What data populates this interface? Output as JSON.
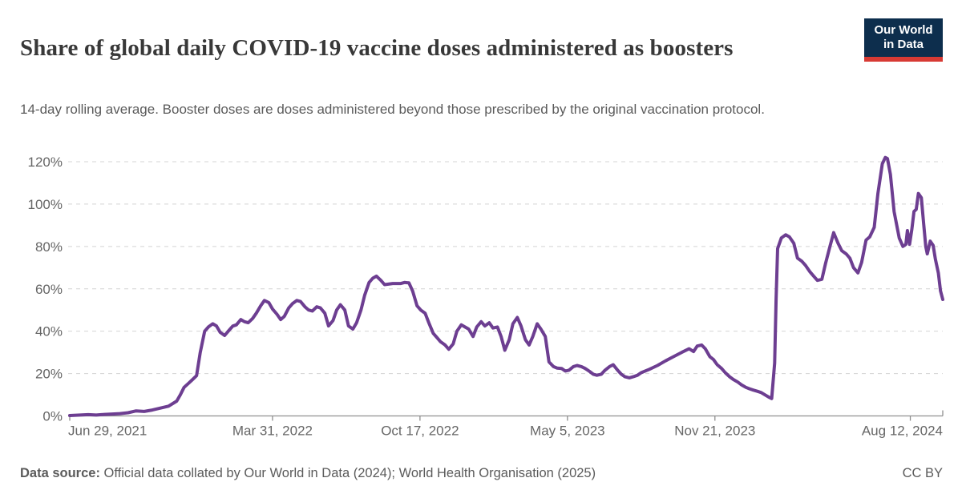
{
  "header": {
    "title": "Share of global daily COVID-19 vaccine doses administered as boosters",
    "subtitle": "14-day rolling average. Booster doses are doses administered beyond those prescribed by the original vaccination protocol.",
    "logo": {
      "line1": "Our World",
      "line2": "in Data"
    }
  },
  "footer": {
    "source_label": "Data source:",
    "source_text": " Official data collated by Our World in Data (2024); World Health Organisation (2025)",
    "license": "CC BY"
  },
  "colors": {
    "line": "#6d3e91",
    "grid": "#d4d4d4",
    "axis": "#8f8f8f",
    "tick_text": "#666666",
    "logo_bg": "#0d2e4d",
    "logo_bar": "#d73a34"
  },
  "chart_data": {
    "type": "line",
    "title": "Share of global daily COVID-19 vaccine doses administered as boosters",
    "subtitle": "14-day rolling average.",
    "ylabel": "",
    "xlabel": "",
    "y_unit": "%",
    "ylim": [
      0,
      130
    ],
    "y_ticks": [
      0,
      20,
      40,
      60,
      80,
      100,
      120
    ],
    "grid": "dashed-horizontal",
    "legend": "none",
    "x_domain": [
      "2021-06-29",
      "2024-09-25"
    ],
    "x_ticks": [
      {
        "label": "Jun 29, 2021",
        "date": "2021-06-29"
      },
      {
        "label": "Mar 31, 2022",
        "date": "2022-03-31"
      },
      {
        "label": "Oct 17, 2022",
        "date": "2022-10-17"
      },
      {
        "label": "May 5, 2023",
        "date": "2023-05-05"
      },
      {
        "label": "Nov 21, 2023",
        "date": "2023-11-21"
      },
      {
        "label": "Aug 12, 2024",
        "date": "2024-08-12"
      }
    ],
    "series": [
      {
        "name": "share_of_doses_as_boosters",
        "points": [
          [
            "2021-06-29",
            0.2
          ],
          [
            "2021-07-13",
            0.4
          ],
          [
            "2021-07-24",
            0.6
          ],
          [
            "2021-08-04",
            0.4
          ],
          [
            "2021-08-15",
            0.7
          ],
          [
            "2021-08-26",
            0.9
          ],
          [
            "2021-09-05",
            1.1
          ],
          [
            "2021-09-16",
            1.5
          ],
          [
            "2021-09-27",
            2.4
          ],
          [
            "2021-10-08",
            2.1
          ],
          [
            "2021-10-19",
            2.8
          ],
          [
            "2021-10-30",
            3.7
          ],
          [
            "2021-11-10",
            4.6
          ],
          [
            "2021-11-21",
            7
          ],
          [
            "2021-11-26",
            10
          ],
          [
            "2021-12-01",
            13.5
          ],
          [
            "2021-12-07",
            15.4
          ],
          [
            "2021-12-12",
            17
          ],
          [
            "2021-12-18",
            19
          ],
          [
            "2021-12-23",
            30
          ],
          [
            "2021-12-29",
            40
          ],
          [
            "2022-01-03",
            42
          ],
          [
            "2022-01-09",
            43.5
          ],
          [
            "2022-01-14",
            42.5
          ],
          [
            "2022-01-19",
            39.5
          ],
          [
            "2022-01-25",
            38
          ],
          [
            "2022-01-30",
            40
          ],
          [
            "2022-02-05",
            42.4
          ],
          [
            "2022-02-10",
            43
          ],
          [
            "2022-02-16",
            45.5
          ],
          [
            "2022-02-21",
            44.5
          ],
          [
            "2022-02-26",
            44
          ],
          [
            "2022-03-04",
            46
          ],
          [
            "2022-03-09",
            48.5
          ],
          [
            "2022-03-15",
            52
          ],
          [
            "2022-03-20",
            54.5
          ],
          [
            "2022-03-26",
            53.5
          ],
          [
            "2022-03-31",
            50.5
          ],
          [
            "2022-04-06",
            48
          ],
          [
            "2022-04-11",
            45.5
          ],
          [
            "2022-04-16",
            47
          ],
          [
            "2022-04-22",
            51
          ],
          [
            "2022-04-27",
            53
          ],
          [
            "2022-05-03",
            54.5
          ],
          [
            "2022-05-08",
            54
          ],
          [
            "2022-05-14",
            51.5
          ],
          [
            "2022-05-19",
            50
          ],
          [
            "2022-05-24",
            49.5
          ],
          [
            "2022-05-30",
            51.5
          ],
          [
            "2022-06-04",
            51
          ],
          [
            "2022-06-10",
            48.5
          ],
          [
            "2022-06-15",
            42.5
          ],
          [
            "2022-06-21",
            45
          ],
          [
            "2022-06-26",
            50
          ],
          [
            "2022-07-01",
            52.5
          ],
          [
            "2022-07-07",
            50
          ],
          [
            "2022-07-12",
            42.5
          ],
          [
            "2022-07-18",
            41
          ],
          [
            "2022-07-23",
            44
          ],
          [
            "2022-07-29",
            50
          ],
          [
            "2022-08-03",
            57
          ],
          [
            "2022-08-09",
            63
          ],
          [
            "2022-08-14",
            65
          ],
          [
            "2022-08-19",
            66
          ],
          [
            "2022-08-25",
            64
          ],
          [
            "2022-08-30",
            62
          ],
          [
            "2022-09-10",
            62.5
          ],
          [
            "2022-09-21",
            62.5
          ],
          [
            "2022-09-26",
            63
          ],
          [
            "2022-10-02",
            62.8
          ],
          [
            "2022-10-07",
            59
          ],
          [
            "2022-10-13",
            52
          ],
          [
            "2022-10-18",
            50
          ],
          [
            "2022-10-24",
            48.5
          ],
          [
            "2022-10-29",
            44
          ],
          [
            "2022-11-04",
            39
          ],
          [
            "2022-11-09",
            37
          ],
          [
            "2022-11-14",
            35
          ],
          [
            "2022-11-20",
            33.5
          ],
          [
            "2022-11-25",
            31.5
          ],
          [
            "2022-12-01",
            34
          ],
          [
            "2022-12-06",
            40
          ],
          [
            "2022-12-12",
            43
          ],
          [
            "2022-12-17",
            42
          ],
          [
            "2022-12-22",
            41
          ],
          [
            "2022-12-28",
            37.5
          ],
          [
            "2023-01-02",
            42
          ],
          [
            "2023-01-08",
            44.5
          ],
          [
            "2023-01-13",
            42.5
          ],
          [
            "2023-01-19",
            44
          ],
          [
            "2023-01-24",
            41.5
          ],
          [
            "2023-01-30",
            42
          ],
          [
            "2023-02-04",
            37.5
          ],
          [
            "2023-02-09",
            31
          ],
          [
            "2023-02-15",
            36
          ],
          [
            "2023-02-20",
            43.5
          ],
          [
            "2023-02-26",
            46.5
          ],
          [
            "2023-03-03",
            42.5
          ],
          [
            "2023-03-09",
            36
          ],
          [
            "2023-03-14",
            33.5
          ],
          [
            "2023-03-19",
            37.5
          ],
          [
            "2023-03-25",
            43.5
          ],
          [
            "2023-03-30",
            41
          ],
          [
            "2023-04-05",
            37.5
          ],
          [
            "2023-04-10",
            25.5
          ],
          [
            "2023-04-16",
            23.3
          ],
          [
            "2023-04-21",
            22.6
          ],
          [
            "2023-04-27",
            22.4
          ],
          [
            "2023-05-02",
            21.2
          ],
          [
            "2023-05-07",
            21.6
          ],
          [
            "2023-05-13",
            23.3
          ],
          [
            "2023-05-18",
            23.8
          ],
          [
            "2023-05-24",
            23.3
          ],
          [
            "2023-05-29",
            22.4
          ],
          [
            "2023-06-04",
            21
          ],
          [
            "2023-06-09",
            19.7
          ],
          [
            "2023-06-14",
            19.2
          ],
          [
            "2023-06-20",
            19.7
          ],
          [
            "2023-06-25",
            21.6
          ],
          [
            "2023-07-01",
            23.3
          ],
          [
            "2023-07-06",
            24.2
          ],
          [
            "2023-07-12",
            21.6
          ],
          [
            "2023-07-17",
            19.7
          ],
          [
            "2023-07-22",
            18.5
          ],
          [
            "2023-07-28",
            18
          ],
          [
            "2023-08-02",
            18.5
          ],
          [
            "2023-08-08",
            19.2
          ],
          [
            "2023-08-13",
            20.4
          ],
          [
            "2023-08-24",
            22
          ],
          [
            "2023-09-04",
            23.8
          ],
          [
            "2023-09-15",
            26
          ],
          [
            "2023-09-26",
            28
          ],
          [
            "2023-10-07",
            30
          ],
          [
            "2023-10-17",
            31.7
          ],
          [
            "2023-10-23",
            30.4
          ],
          [
            "2023-10-28",
            33
          ],
          [
            "2023-11-03",
            33.5
          ],
          [
            "2023-11-08",
            31.7
          ],
          [
            "2023-11-14",
            28
          ],
          [
            "2023-11-19",
            26.6
          ],
          [
            "2023-11-24",
            24.2
          ],
          [
            "2023-11-30",
            22.4
          ],
          [
            "2023-12-05",
            20.4
          ],
          [
            "2023-12-11",
            18.5
          ],
          [
            "2023-12-16",
            17.2
          ],
          [
            "2023-12-22",
            16
          ],
          [
            "2023-12-27",
            14.7
          ],
          [
            "2024-01-02",
            13.5
          ],
          [
            "2024-01-07",
            12.8
          ],
          [
            "2024-01-12",
            12.2
          ],
          [
            "2024-01-18",
            11.6
          ],
          [
            "2024-01-23",
            11
          ],
          [
            "2024-01-29",
            9.7
          ],
          [
            "2024-02-03",
            8.7
          ],
          [
            "2024-02-06",
            8.2
          ],
          [
            "2024-02-10",
            25
          ],
          [
            "2024-02-12",
            55
          ],
          [
            "2024-02-14",
            79
          ],
          [
            "2024-02-19",
            84
          ],
          [
            "2024-02-25",
            85.5
          ],
          [
            "2024-03-01",
            84.5
          ],
          [
            "2024-03-07",
            81.5
          ],
          [
            "2024-03-12",
            74.5
          ],
          [
            "2024-03-18",
            73
          ],
          [
            "2024-03-23",
            71
          ],
          [
            "2024-03-29",
            68
          ],
          [
            "2024-04-03",
            66
          ],
          [
            "2024-04-08",
            64
          ],
          [
            "2024-04-14",
            64.5
          ],
          [
            "2024-04-19",
            72
          ],
          [
            "2024-04-25",
            80
          ],
          [
            "2024-04-30",
            86.5
          ],
          [
            "2024-05-06",
            81.5
          ],
          [
            "2024-05-11",
            78
          ],
          [
            "2024-05-17",
            76.5
          ],
          [
            "2024-05-22",
            74.5
          ],
          [
            "2024-05-27",
            70
          ],
          [
            "2024-06-02",
            67.5
          ],
          [
            "2024-06-07",
            72.5
          ],
          [
            "2024-06-13",
            83
          ],
          [
            "2024-06-18",
            84.5
          ],
          [
            "2024-06-24",
            89
          ],
          [
            "2024-06-29",
            105
          ],
          [
            "2024-07-05",
            119
          ],
          [
            "2024-07-09",
            122
          ],
          [
            "2024-07-12",
            121.5
          ],
          [
            "2024-07-16",
            114
          ],
          [
            "2024-07-21",
            96.5
          ],
          [
            "2024-07-24",
            91
          ],
          [
            "2024-07-28",
            84
          ],
          [
            "2024-08-02",
            80
          ],
          [
            "2024-08-06",
            81
          ],
          [
            "2024-08-08",
            87.5
          ],
          [
            "2024-08-11",
            81
          ],
          [
            "2024-08-14",
            88
          ],
          [
            "2024-08-17",
            96.5
          ],
          [
            "2024-08-20",
            97.5
          ],
          [
            "2024-08-23",
            105
          ],
          [
            "2024-08-27",
            103
          ],
          [
            "2024-08-30",
            91
          ],
          [
            "2024-09-02",
            80
          ],
          [
            "2024-09-04",
            76.5
          ],
          [
            "2024-09-08",
            82.5
          ],
          [
            "2024-09-12",
            80.5
          ],
          [
            "2024-09-15",
            74
          ],
          [
            "2024-09-19",
            67.5
          ],
          [
            "2024-09-22",
            59
          ],
          [
            "2024-09-25",
            55
          ]
        ]
      }
    ]
  }
}
